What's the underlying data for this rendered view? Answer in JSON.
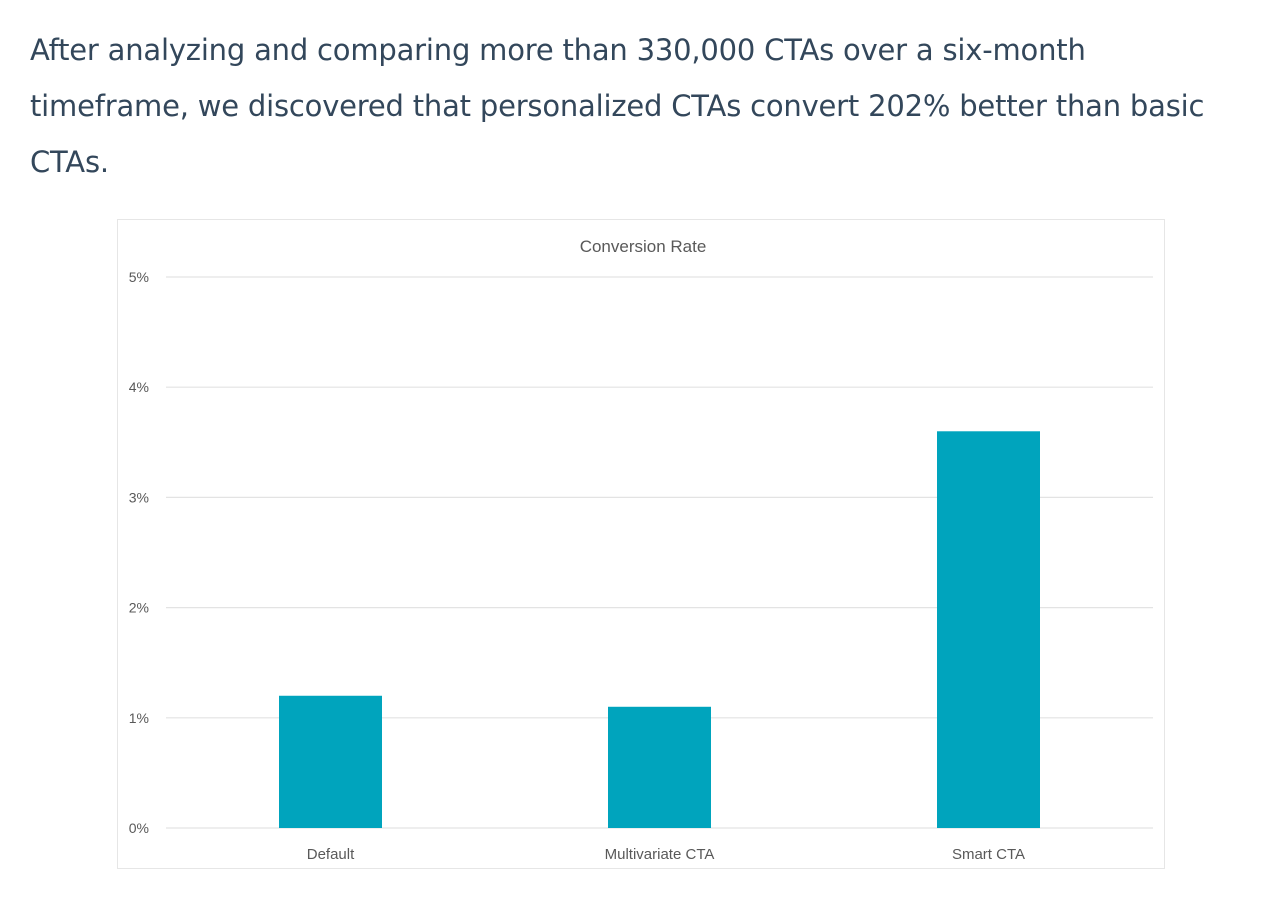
{
  "article": {
    "paragraph": "After analyzing and comparing more than 330,000 CTAs over a six-month timeframe, we discovered that personalized CTAs convert 202% better than basic CTAs."
  },
  "colors": {
    "bar": "#00a4bd",
    "text": "#33475b",
    "grid": "#e3e3e3",
    "axis_label": "#595959"
  },
  "chart_data": {
    "type": "bar",
    "title": "Conversion Rate",
    "categories": [
      "Default",
      "Multivariate CTA",
      "Smart CTA"
    ],
    "values": [
      1.2,
      1.1,
      3.6
    ],
    "unit": "%",
    "ylim": [
      0,
      5
    ],
    "yticks": [
      0,
      1,
      2,
      3,
      4,
      5
    ],
    "ytick_labels": [
      "0%",
      "1%",
      "2%",
      "3%",
      "4%",
      "5%"
    ],
    "xlabel": "",
    "ylabel": "",
    "grid": true,
    "legend": "none"
  }
}
